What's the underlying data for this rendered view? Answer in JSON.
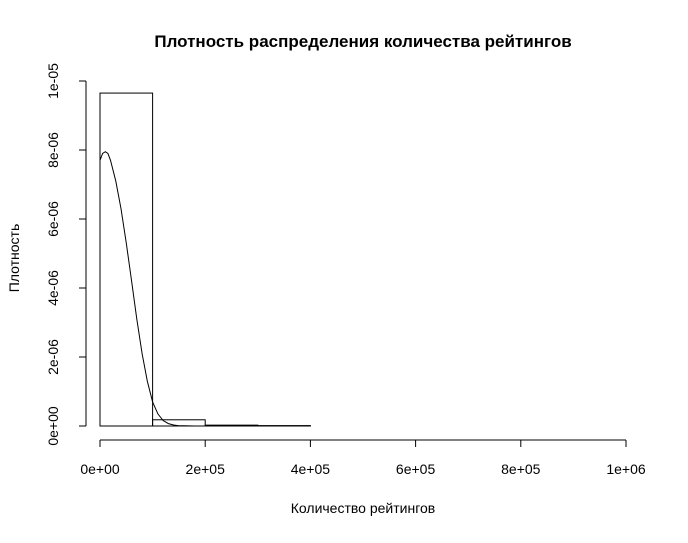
{
  "chart_data": {
    "type": "histogram",
    "title": "Плотность распределения количества рейтингов",
    "xlabel": "Количество рейтингов",
    "ylabel": "Плотность",
    "xlim": [
      0,
      1000000
    ],
    "ylim": [
      0,
      1e-05
    ],
    "x_ticks": [
      0,
      200000,
      400000,
      600000,
      800000,
      1000000
    ],
    "x_tick_labels": [
      "0e+00",
      "2e+05",
      "4e+05",
      "6e+05",
      "8e+05",
      "1e+06"
    ],
    "y_ticks": [
      0,
      2e-06,
      4e-06,
      6e-06,
      8e-06,
      1e-05
    ],
    "y_tick_labels": [
      "0e+00",
      "2e-06",
      "4e-06",
      "6e-06",
      "8e-06",
      "1e-05"
    ],
    "bins": [
      {
        "x0": 0,
        "x1": 100000,
        "density": 9.65e-06
      },
      {
        "x0": 100000,
        "x1": 200000,
        "density": 1.8e-07
      },
      {
        "x0": 200000,
        "x1": 300000,
        "density": 2.5e-08
      },
      {
        "x0": 300000,
        "x1": 400000,
        "density": 1.2e-08
      },
      {
        "x0": 400000,
        "x1": 500000,
        "density": 0
      },
      {
        "x0": 500000,
        "x1": 600000,
        "density": 0
      },
      {
        "x0": 600000,
        "x1": 700000,
        "density": 0
      },
      {
        "x0": 700000,
        "x1": 800000,
        "density": 0
      },
      {
        "x0": 800000,
        "x1": 900000,
        "density": 0
      },
      {
        "x0": 900000,
        "x1": 1000000,
        "density": 0
      }
    ],
    "density_curve": {
      "x": [
        0,
        5000,
        10000,
        15000,
        20000,
        30000,
        40000,
        50000,
        60000,
        70000,
        80000,
        90000,
        100000,
        110000,
        120000,
        130000,
        140000,
        150000,
        160000,
        170000,
        180000
      ],
      "y": [
        7.7e-06,
        7.9e-06,
        7.95e-06,
        7.9e-06,
        7.7e-06,
        7.1e-06,
        6.3e-06,
        5.3e-06,
        4.2e-06,
        3.1e-06,
        2.1e-06,
        1.3e-06,
        7e-07,
        3.5e-07,
        1.6e-07,
        7e-08,
        3e-08,
        1e-08,
        5e-09,
        2e-09,
        0
      ]
    }
  }
}
